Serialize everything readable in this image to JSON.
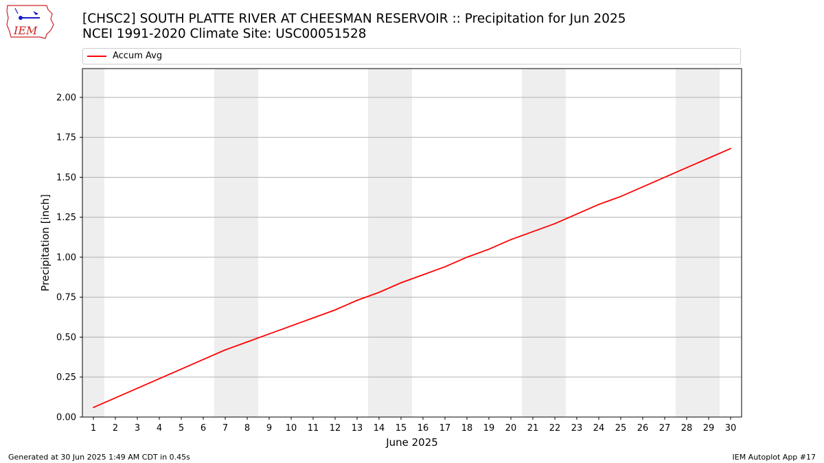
{
  "logo": {
    "icon": "iem-logo-icon",
    "text": "IEM",
    "color": "#cc2222"
  },
  "header": {
    "title_line1": "[CHSC2] SOUTH PLATTE RIVER  AT CHEESMAN RESERVOIR :: Precipitation for Jun 2025",
    "title_line2": "NCEI 1991-2020 Climate Site: USC00051528"
  },
  "legend": {
    "entries": [
      {
        "label": "Accum Avg",
        "color": "#ff0000"
      }
    ],
    "placement": "top"
  },
  "footer": {
    "left": "Generated at 30 Jun 2025 1:49 AM CDT in 0.45s",
    "right": "IEM Autoplot App #17"
  },
  "chart_data": {
    "type": "line",
    "xlabel": "June 2025",
    "ylabel": "Precipitation [inch]",
    "x": [
      1,
      2,
      3,
      4,
      5,
      6,
      7,
      8,
      9,
      10,
      11,
      12,
      13,
      14,
      15,
      16,
      17,
      18,
      19,
      20,
      21,
      22,
      23,
      24,
      25,
      26,
      27,
      28,
      29,
      30
    ],
    "xlim": [
      0.5,
      30.5
    ],
    "ylim": [
      0,
      2.18
    ],
    "yticks": [
      0.0,
      0.25,
      0.5,
      0.75,
      1.0,
      1.25,
      1.5,
      1.75,
      2.0
    ],
    "ytick_labels": [
      "0.00",
      "0.25",
      "0.50",
      "0.75",
      "1.00",
      "1.25",
      "1.50",
      "1.75",
      "2.00"
    ],
    "grid": "y",
    "weekend_shading": [
      [
        1,
        1
      ],
      [
        7,
        8
      ],
      [
        14,
        15
      ],
      [
        21,
        22
      ],
      [
        28,
        29
      ]
    ],
    "shade_color": "#eeeeee",
    "series": [
      {
        "name": "Accum Avg",
        "color": "#ff0000",
        "values": [
          0.06,
          0.12,
          0.18,
          0.24,
          0.3,
          0.36,
          0.42,
          0.47,
          0.52,
          0.57,
          0.62,
          0.67,
          0.73,
          0.78,
          0.84,
          0.89,
          0.94,
          1.0,
          1.05,
          1.11,
          1.16,
          1.21,
          1.27,
          1.33,
          1.38,
          1.44,
          1.5,
          1.56,
          1.62,
          1.68
        ]
      }
    ]
  }
}
